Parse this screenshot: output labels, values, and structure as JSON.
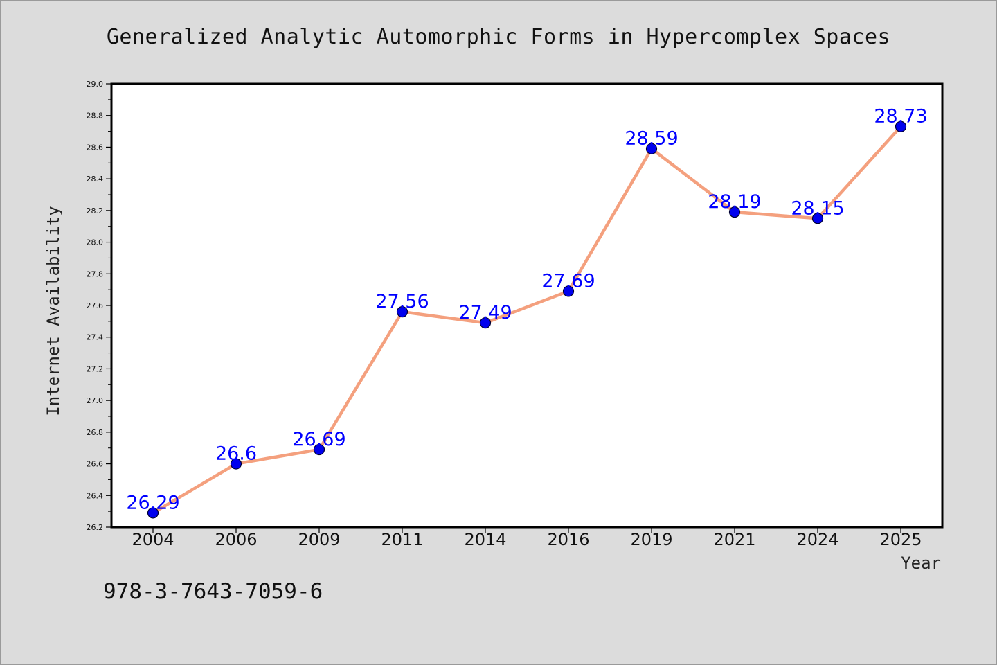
{
  "chart_data": {
    "type": "line",
    "title": "Generalized Analytic Automorphic Forms in Hypercomplex Spaces",
    "xlabel": "Year",
    "ylabel": "Internet Availability",
    "categories": [
      "2004",
      "2006",
      "2009",
      "2011",
      "2014",
      "2016",
      "2019",
      "2021",
      "2024",
      "2025"
    ],
    "values": [
      26.29,
      26.6,
      26.69,
      27.56,
      27.49,
      27.69,
      28.59,
      28.19,
      28.15,
      28.73
    ],
    "value_labels": [
      "26.29",
      "26.6",
      "26.69",
      "27.56",
      "27.49",
      "27.69",
      "28.59",
      "28.19",
      "28.15",
      "28.73"
    ],
    "ylim": [
      26.2,
      29.0
    ],
    "yticks": [
      26.2,
      26.4,
      26.6,
      26.8,
      27.0,
      27.2,
      27.4,
      27.6,
      27.8,
      28.0,
      28.2,
      28.4,
      28.6,
      28.8,
      29.0
    ],
    "ytick_labels": [
      "26.2",
      "26.4",
      "26.6",
      "26.8",
      "27.0",
      "27.2",
      "27.4",
      "27.6",
      "27.8",
      "28.0",
      "28.2",
      "28.4",
      "28.6",
      "28.8",
      "29.0"
    ],
    "grid": false,
    "line_color": "#f4a07e",
    "marker_color": "#0000ee",
    "label_color": "#0000ff",
    "background_color": "#dcdcdc",
    "plot_background_color": "#ffffff"
  },
  "footnote": "978-3-7643-7059-6"
}
